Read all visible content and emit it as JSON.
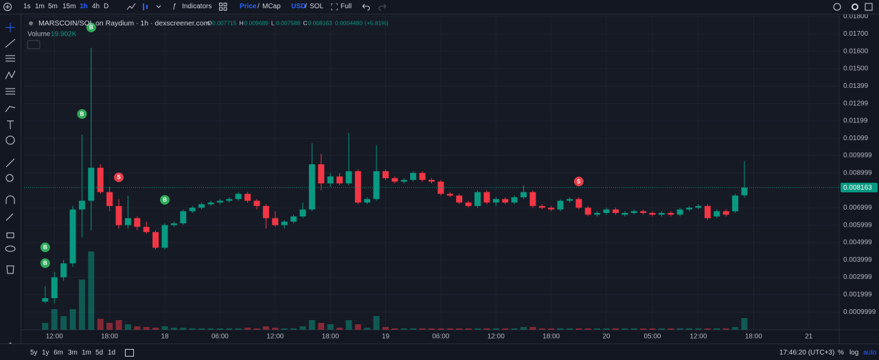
{
  "toolbar": {
    "intervals": [
      "1s",
      "1m",
      "5m",
      "15m",
      "1h",
      "4h",
      "D"
    ],
    "active_interval": 4,
    "indicators": "Indicators",
    "price": "Price",
    "slash": "/",
    "mcap": "MCap",
    "usd": "USD",
    "sol": "SOL",
    "full": "Full"
  },
  "bottom_bar": {
    "ranges": [
      "5y",
      "1y",
      "6m",
      "3m",
      "1m",
      "5d",
      "1d"
    ],
    "clock": "17:46:20 (UTC+3)",
    "percent": "%",
    "log": "log",
    "auto": "auto"
  },
  "chart_data": {
    "type": "candlestick",
    "title": "MARSCOIN/SOL on Raydium · 1h · dexscreener.com",
    "legend": {
      "keys": [
        "O",
        "H",
        "L",
        "C"
      ],
      "values": [
        "0.007715",
        "0.009689",
        "0.007588",
        "0.008163"
      ],
      "change": "0.0004480",
      "change_pct": "(+5.81%)"
    },
    "volume_title": "Volume",
    "volume_label": "19.902K",
    "up_color": "#089981",
    "down_color": "#f23645",
    "open": [
      0.0016,
      0.0018,
      0.003,
      0.0038,
      0.0069,
      0.0074,
      0.0093,
      0.0079,
      0.0071,
      0.006,
      0.0064,
      0.0059,
      0.0056,
      0.0047,
      0.006,
      0.0061,
      0.0068,
      0.007,
      0.0072,
      0.0073,
      0.0074,
      0.0075,
      0.0078,
      0.0074,
      0.0071,
      0.0064,
      0.006,
      0.0062,
      0.0065,
      0.0069,
      0.0095,
      0.0084,
      0.0088,
      0.0084,
      0.0091,
      0.0073,
      0.0075,
      0.0091,
      0.0087,
      0.0085,
      0.0086,
      0.009,
      0.0086,
      0.0085,
      0.0078,
      0.0077,
      0.0073,
      0.0071,
      0.0079,
      0.0073,
      0.0075,
      0.0073,
      0.0076,
      0.0079,
      0.0071,
      0.007,
      0.0069,
      0.0074,
      0.0075,
      0.007,
      0.0066,
      0.0067,
      0.0069,
      0.0066,
      0.0067,
      0.0068,
      0.0067,
      0.0066,
      0.0067,
      0.0066,
      0.0069,
      0.007,
      0.0071,
      0.0065,
      0.0068,
      0.0068,
      0.007715
    ],
    "high": [
      0.0025,
      0.0033,
      0.004,
      0.0071,
      0.0112,
      0.0162,
      0.0095,
      0.0082,
      0.0075,
      0.0077,
      0.0065,
      0.0062,
      0.0057,
      0.0061,
      0.0062,
      0.0069,
      0.0071,
      0.0073,
      0.0074,
      0.0075,
      0.0076,
      0.0079,
      0.0079,
      0.0075,
      0.0072,
      0.0068,
      0.0063,
      0.0066,
      0.0073,
      0.0107,
      0.0101,
      0.009,
      0.009,
      0.0113,
      0.0092,
      0.0076,
      0.0106,
      0.0092,
      0.0088,
      0.0087,
      0.0091,
      0.0091,
      0.0087,
      0.0086,
      0.0079,
      0.0078,
      0.0074,
      0.008,
      0.008,
      0.0076,
      0.0076,
      0.0077,
      0.0083,
      0.008,
      0.0072,
      0.0071,
      0.0075,
      0.0076,
      0.0076,
      0.0071,
      0.0068,
      0.007,
      0.007,
      0.0068,
      0.0069,
      0.0069,
      0.0068,
      0.0068,
      0.0068,
      0.007,
      0.0071,
      0.0072,
      0.0072,
      0.0069,
      0.0069,
      0.0078,
      0.009689
    ],
    "low": [
      0.0015,
      0.0015,
      0.0028,
      0.0036,
      0.0053,
      0.0057,
      0.0078,
      0.0068,
      0.0058,
      0.0058,
      0.0057,
      0.0055,
      0.0046,
      0.0046,
      0.0059,
      0.006,
      0.0067,
      0.0069,
      0.0071,
      0.0072,
      0.0073,
      0.0074,
      0.0073,
      0.0069,
      0.0058,
      0.0059,
      0.0058,
      0.0061,
      0.0064,
      0.0068,
      0.008,
      0.0082,
      0.0083,
      0.0083,
      0.0072,
      0.0072,
      0.0074,
      0.0086,
      0.0084,
      0.0084,
      0.0085,
      0.0085,
      0.0084,
      0.0077,
      0.0076,
      0.0072,
      0.007,
      0.007,
      0.0072,
      0.0071,
      0.0072,
      0.0072,
      0.0075,
      0.007,
      0.0069,
      0.0068,
      0.0068,
      0.0073,
      0.0069,
      0.0065,
      0.0065,
      0.0066,
      0.0066,
      0.0065,
      0.0066,
      0.0066,
      0.0065,
      0.0065,
      0.0065,
      0.0065,
      0.0068,
      0.0069,
      0.0063,
      0.0064,
      0.0065,
      0.0067,
      0.007588
    ],
    "close": [
      0.0018,
      0.003,
      0.0038,
      0.0069,
      0.0074,
      0.0093,
      0.0079,
      0.0071,
      0.006,
      0.0064,
      0.0059,
      0.0056,
      0.0047,
      0.006,
      0.0061,
      0.0068,
      0.007,
      0.0072,
      0.0073,
      0.0074,
      0.0075,
      0.0078,
      0.0074,
      0.0071,
      0.0064,
      0.006,
      0.0062,
      0.0065,
      0.0069,
      0.0095,
      0.0084,
      0.0088,
      0.0084,
      0.0091,
      0.0073,
      0.0075,
      0.0091,
      0.0087,
      0.0085,
      0.0086,
      0.009,
      0.0086,
      0.0085,
      0.0078,
      0.0077,
      0.0073,
      0.0071,
      0.0079,
      0.0073,
      0.0075,
      0.0073,
      0.0076,
      0.0079,
      0.0071,
      0.007,
      0.0069,
      0.0074,
      0.0075,
      0.007,
      0.0066,
      0.0067,
      0.0069,
      0.0067,
      0.0067,
      0.0068,
      0.0067,
      0.0066,
      0.0067,
      0.0066,
      0.0069,
      0.007,
      0.0071,
      0.0064,
      0.0068,
      0.0066,
      0.0077,
      0.008163
    ],
    "volume": [
      11700,
      35100,
      23400,
      35100,
      85500,
      133500,
      18700,
      11700,
      16400,
      9400,
      5900,
      4700,
      3500,
      5900,
      3500,
      3500,
      2300,
      2300,
      2300,
      2300,
      2300,
      2300,
      3500,
      2300,
      5900,
      3500,
      2300,
      2300,
      5900,
      16400,
      11700,
      9400,
      3500,
      16400,
      9400,
      3500,
      23400,
      4700,
      2300,
      2300,
      2300,
      2300,
      2300,
      2300,
      2300,
      2300,
      2300,
      2300,
      2300,
      2300,
      2300,
      2300,
      4700,
      4700,
      2300,
      2300,
      2300,
      2300,
      2300,
      2300,
      2300,
      2300,
      2300,
      2300,
      2300,
      2300,
      2300,
      2300,
      2300,
      2300,
      2300,
      2300,
      2300,
      2300,
      2300,
      4700,
      19902
    ],
    "trades": [
      {
        "candle": 0,
        "price": 0.00472,
        "side": "B"
      },
      {
        "candle": 0,
        "price": 0.00381,
        "side": "B"
      },
      {
        "candle": 4,
        "price": 0.01239,
        "side": "B"
      },
      {
        "candle": 5,
        "price": 0.01737,
        "side": "B"
      },
      {
        "candle": 8,
        "price": 0.00875,
        "side": "S"
      },
      {
        "candle": 13,
        "price": 0.00745,
        "side": "B"
      },
      {
        "candle": 58,
        "price": 0.00851,
        "side": "S"
      }
    ],
    "last_price": {
      "value": 0.008163,
      "label": "0.008163"
    },
    "xlim": [
      -2.3,
      86.3
    ],
    "xticks": [
      {
        "value": 1,
        "label": "12:00"
      },
      {
        "value": 7,
        "label": "18:00"
      },
      {
        "value": 13,
        "label": "18"
      },
      {
        "value": 19,
        "label": "06:00"
      },
      {
        "value": 25,
        "label": "12:00"
      },
      {
        "value": 31,
        "label": "18:00"
      },
      {
        "value": 37,
        "label": "19"
      },
      {
        "value": 43,
        "label": "06:00"
      },
      {
        "value": 49,
        "label": "12:00"
      },
      {
        "value": 55,
        "label": "18:00"
      },
      {
        "value": 61,
        "label": "20"
      },
      {
        "value": 66,
        "label": "05:00"
      },
      {
        "value": 71,
        "label": "12:00"
      },
      {
        "value": 77,
        "label": "18:00"
      },
      {
        "value": 83,
        "label": "21"
      }
    ],
    "ylim": [
      -2e-05,
      0.01808
    ],
    "yticks": [
      {
        "value": 0.018,
        "label": "0.01800"
      },
      {
        "value": 0.017,
        "label": "0.01700"
      },
      {
        "value": 0.016,
        "label": "0.01600"
      },
      {
        "value": 0.015,
        "label": "0.01500"
      },
      {
        "value": 0.01399,
        "label": "0.01399"
      },
      {
        "value": 0.01299,
        "label": "0.01299"
      },
      {
        "value": 0.01199,
        "label": "0.01199"
      },
      {
        "value": 0.01099,
        "label": "0.01099"
      },
      0.009999,
      0.008999,
      0.006999,
      0.005999,
      0.004999,
      0.003999,
      0.002999,
      0.001999,
      0.0009999
    ],
    "grid": true
  }
}
